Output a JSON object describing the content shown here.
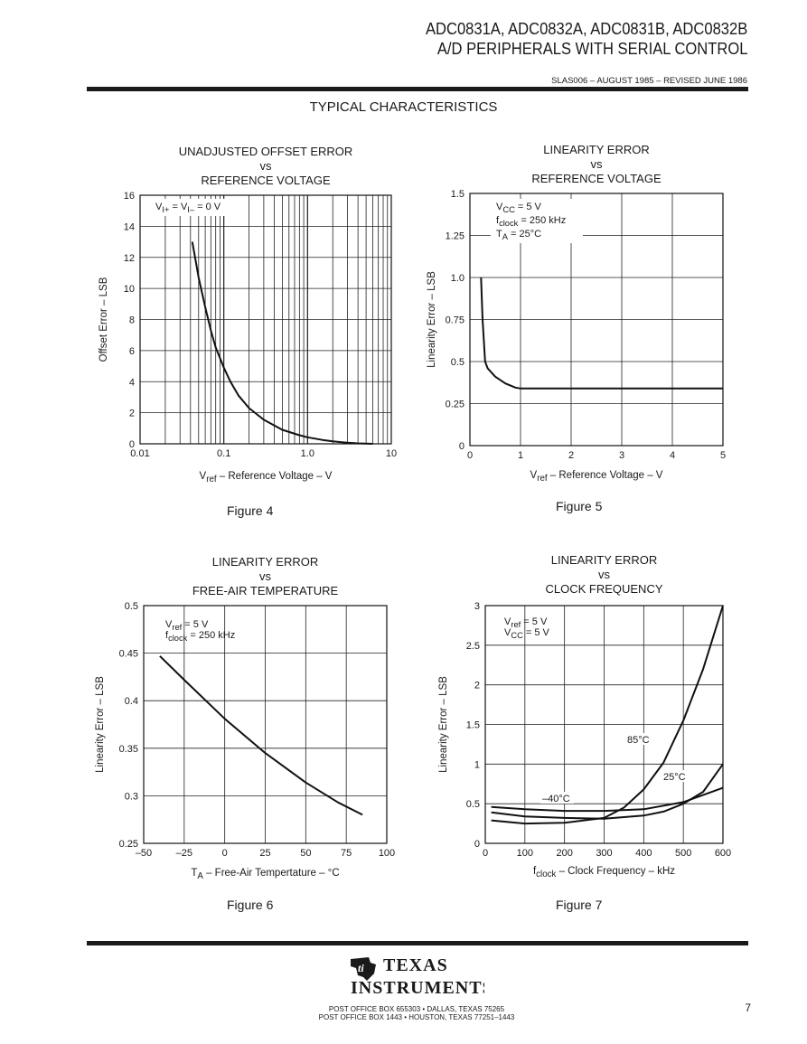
{
  "header": {
    "line1": "ADC0831A, ADC0832A, ADC0831B, ADC0832B",
    "line2": "A/D PERIPHERALS WITH SERIAL CONTROL",
    "doc_id": "SLAS006 – AUGUST 1985 – REVISED JUNE 1986"
  },
  "section_title": "TYPICAL CHARACTERISTICS",
  "chart_data": [
    {
      "id": "fig4",
      "type": "line",
      "caption": "Figure 4",
      "title_lines": [
        "UNADJUSTED OFFSET ERROR",
        "vs",
        "REFERENCE VOLTAGE"
      ],
      "xlabel": "Vref – Reference Voltage – V",
      "ylabel": "Offset Error – LSB",
      "xscale": "log",
      "xlim": [
        0.01,
        10
      ],
      "ylim": [
        0,
        16
      ],
      "xticks": [
        0.01,
        0.1,
        1.0,
        10
      ],
      "xtick_labels": [
        "0.01",
        "0.1",
        "1.0",
        "10"
      ],
      "yticks": [
        0,
        2,
        4,
        6,
        8,
        10,
        12,
        14,
        16
      ],
      "grid": true,
      "annotations": [
        {
          "text": "VI+ = VI– = 0 V"
        }
      ],
      "series": [
        {
          "x": [
            0.042,
            0.05,
            0.06,
            0.07,
            0.08,
            0.1,
            0.12,
            0.15,
            0.2,
            0.3,
            0.5,
            0.8,
            1.0,
            1.5,
            2.0,
            3.0,
            4.0,
            5.0,
            6.0
          ],
          "y": [
            13.0,
            10.7,
            8.8,
            7.3,
            6.2,
            4.9,
            4.0,
            3.1,
            2.3,
            1.55,
            0.9,
            0.55,
            0.42,
            0.25,
            0.16,
            0.07,
            0.03,
            0.01,
            0.0
          ]
        }
      ]
    },
    {
      "id": "fig5",
      "type": "line",
      "caption": "Figure 5",
      "title_lines": [
        "LINEARITY ERROR",
        "vs",
        "REFERENCE VOLTAGE"
      ],
      "xlabel": "Vref – Reference Voltage – V",
      "ylabel": "Linearity Error – LSB",
      "xscale": "linear",
      "xlim": [
        0,
        5
      ],
      "ylim": [
        0,
        1.5
      ],
      "xticks": [
        0,
        1,
        2,
        3,
        4,
        5
      ],
      "xtick_labels": [
        "0",
        "1",
        "2",
        "3",
        "4",
        "5"
      ],
      "yticks": [
        0,
        0.25,
        0.5,
        0.75,
        1.0,
        1.25,
        1.5
      ],
      "ytick_labels": [
        "0",
        "0.25",
        "0.5",
        "0.75",
        "1.0",
        "1.25",
        "1.5"
      ],
      "grid": true,
      "annotations": [
        {
          "text": "VCC = 5 V"
        },
        {
          "text": "fclock = 250 kHz"
        },
        {
          "text": "TA = 25°C"
        }
      ],
      "series": [
        {
          "x": [
            0.22,
            0.25,
            0.3,
            0.35,
            0.5,
            0.7,
            0.9,
            1.0,
            2.0,
            3.0,
            4.0,
            5.0
          ],
          "y": [
            1.0,
            0.75,
            0.5,
            0.46,
            0.41,
            0.37,
            0.345,
            0.34,
            0.34,
            0.34,
            0.34,
            0.34
          ]
        }
      ]
    },
    {
      "id": "fig6",
      "type": "line",
      "caption": "Figure 6",
      "title_lines": [
        "LINEARITY ERROR",
        "vs",
        "FREE-AIR TEMPERATURE"
      ],
      "xlabel": "TA – Free-Air Tempertature – °C",
      "ylabel": "Linearity Error – LSB",
      "xscale": "linear",
      "xlim": [
        -50,
        100
      ],
      "ylim": [
        0.25,
        0.5
      ],
      "xticks": [
        -50,
        -25,
        0,
        25,
        50,
        75,
        100
      ],
      "xtick_labels": [
        "–50",
        "–25",
        "0",
        "25",
        "50",
        "75",
        "100"
      ],
      "yticks": [
        0.25,
        0.3,
        0.35,
        0.4,
        0.45,
        0.5
      ],
      "ytick_labels": [
        "0.25",
        "0.3",
        "0.35",
        "0.4",
        "0.45",
        "0.5"
      ],
      "grid": true,
      "annotations": [
        {
          "text": "Vref = 5 V"
        },
        {
          "text": "fclock = 250 kHz"
        }
      ],
      "series": [
        {
          "x": [
            -40,
            -25,
            0,
            25,
            50,
            70,
            85
          ],
          "y": [
            0.447,
            0.422,
            0.381,
            0.345,
            0.314,
            0.293,
            0.28
          ]
        }
      ]
    },
    {
      "id": "fig7",
      "type": "line",
      "caption": "Figure 7",
      "title_lines": [
        "LINEARITY ERROR",
        "vs",
        "CLOCK FREQUENCY"
      ],
      "xlabel": "fclock – Clock Frequency – kHz",
      "ylabel": "Linearity Error – LSB",
      "xscale": "linear",
      "xlim": [
        0,
        600
      ],
      "ylim": [
        0,
        3
      ],
      "xticks": [
        0,
        100,
        200,
        300,
        400,
        500,
        600
      ],
      "xtick_labels": [
        "0",
        "100",
        "200",
        "300",
        "400",
        "500",
        "600"
      ],
      "yticks": [
        0,
        0.5,
        1,
        1.5,
        2,
        2.5,
        3
      ],
      "ytick_labels": [
        "0",
        "0.5",
        "1",
        "1.5",
        "2",
        "2.5",
        "3"
      ],
      "grid": true,
      "annotations": [
        {
          "text": "Vref = 5 V"
        },
        {
          "text": "VCC = 5 V"
        }
      ],
      "series": [
        {
          "name": "85°C",
          "x": [
            15,
            100,
            200,
            300,
            350,
            400,
            450,
            500,
            550,
            600
          ],
          "y": [
            0.29,
            0.25,
            0.26,
            0.32,
            0.45,
            0.68,
            1.02,
            1.55,
            2.2,
            3.0
          ]
        },
        {
          "name": "25°C",
          "x": [
            15,
            100,
            200,
            300,
            400,
            450,
            500,
            550,
            600
          ],
          "y": [
            0.39,
            0.34,
            0.32,
            0.31,
            0.35,
            0.4,
            0.5,
            0.65,
            1.0
          ]
        },
        {
          "name": "–40°C",
          "x": [
            15,
            100,
            200,
            300,
            400,
            500,
            600
          ],
          "y": [
            0.46,
            0.43,
            0.41,
            0.41,
            0.43,
            0.52,
            0.7
          ]
        }
      ]
    }
  ],
  "footer": {
    "logo_line1": "TEXAS",
    "logo_line2": "INSTRUMENTS",
    "addr1": "POST OFFICE BOX 655303 • DALLAS, TEXAS 75265",
    "addr2": "POST OFFICE BOX 1443 • HOUSTON, TEXAS 77251–1443",
    "page_number": "7"
  }
}
